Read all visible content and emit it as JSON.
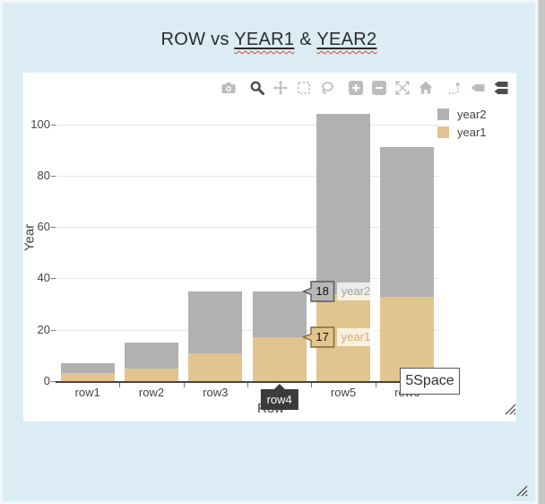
{
  "title": {
    "prefix": "ROW vs ",
    "year1": "YEAR1",
    "separator": " & ",
    "year2": "YEAR2"
  },
  "modebar": {
    "icons": [
      "camera",
      "zoom",
      "pan",
      "box-select",
      "lasso-select",
      "zoom-in",
      "zoom-out",
      "autoscale",
      "reset-home",
      "toggle-spikelines",
      "hover-closest",
      "hover-compare"
    ],
    "active": [
      "zoom",
      "hover-compare"
    ]
  },
  "legend": {
    "items": [
      {
        "label": "year2",
        "color": "#b1b1b1"
      },
      {
        "label": "year1",
        "color": "#e2c48e"
      }
    ]
  },
  "chart_data": {
    "type": "bar",
    "stacked": true,
    "title": "ROW vs YEAR1 & YEAR2",
    "xlabel": "Row",
    "ylabel": "Year",
    "categories": [
      "row1",
      "row2",
      "row3",
      "row4",
      "row5",
      "row6"
    ],
    "series": [
      {
        "name": "year1",
        "color": "#e2c48e",
        "values": [
          3,
          5,
          11,
          17,
          34,
          33
        ]
      },
      {
        "name": "year2",
        "color": "#b1b1b1",
        "values": [
          4,
          10,
          24,
          18,
          70,
          58
        ]
      }
    ],
    "yticks": [
      0,
      20,
      40,
      60,
      80,
      100
    ],
    "ylim": [
      0,
      110
    ],
    "grid": true,
    "legend_position": "top-right"
  },
  "hover": {
    "category": "row4",
    "axis_label": "row4",
    "labels": [
      {
        "value": "18",
        "name": "year2"
      },
      {
        "value": "17",
        "name": "year1"
      }
    ]
  },
  "annotation": {
    "text": "5Space"
  }
}
